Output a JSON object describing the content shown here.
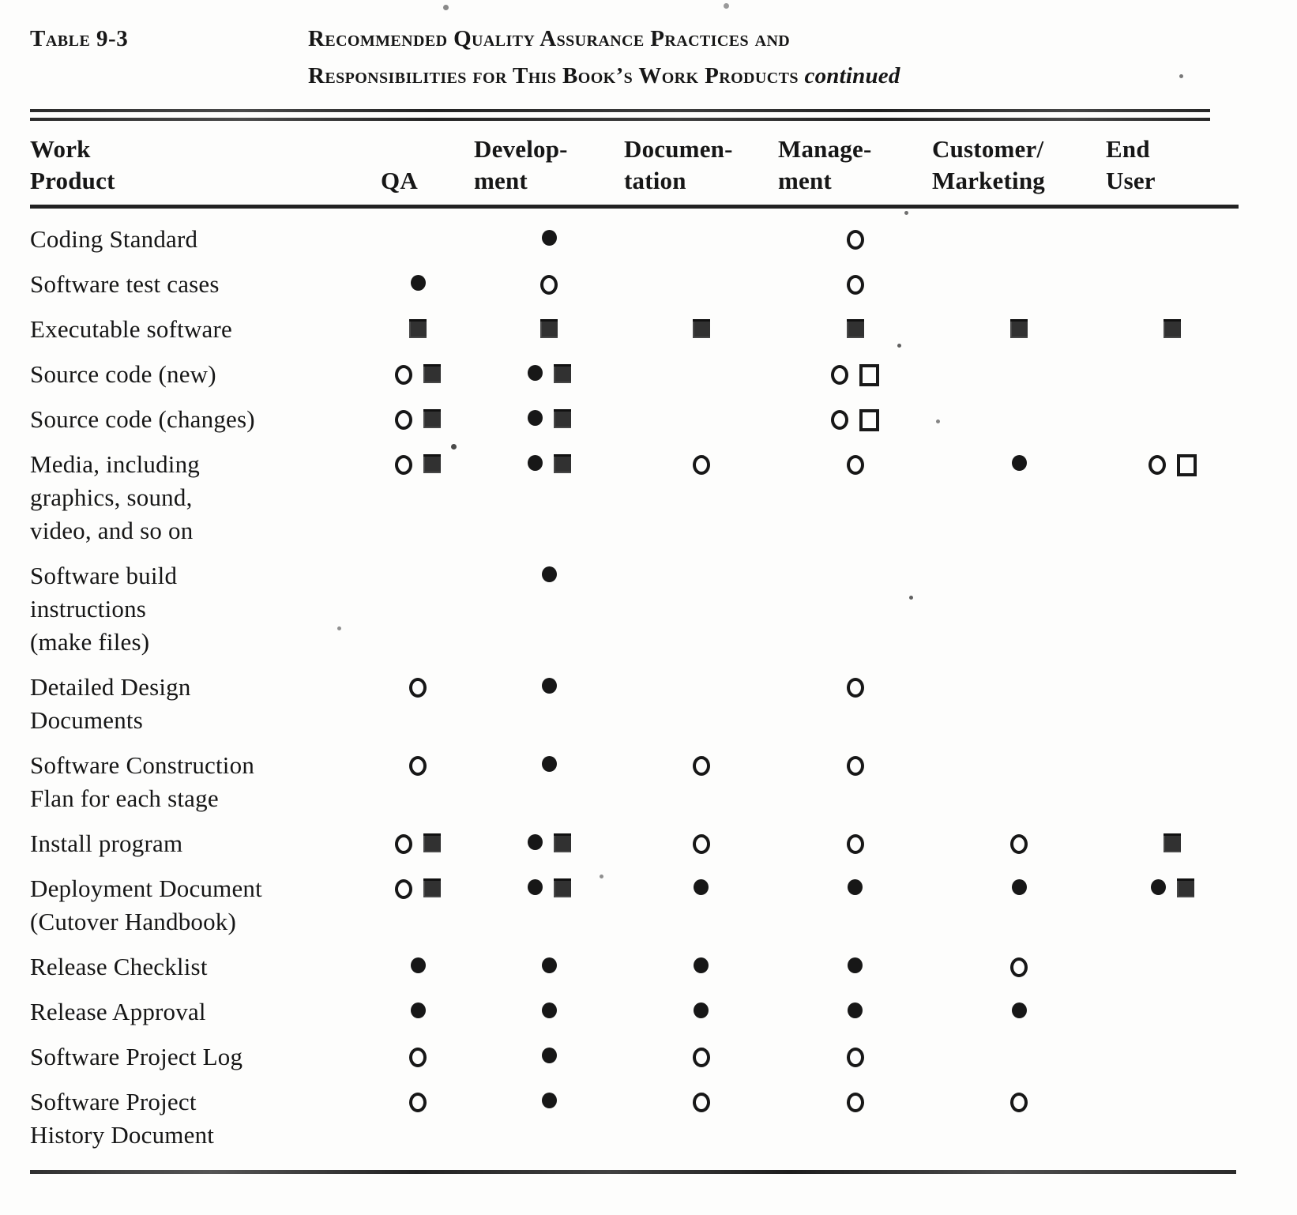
{
  "caption": {
    "label": "Table 9-3",
    "title_line1": "Recommended Quality Assurance Practices and",
    "title_line2": "Responsibilities for This Book’s Work Products",
    "continued": "continued"
  },
  "symbols": {
    "filled-circle": "●",
    "open-circle": "○",
    "filled-square": "■",
    "open-square": "□"
  },
  "columns": [
    {
      "key": "work_product",
      "label": "Work\nProduct"
    },
    {
      "key": "qa",
      "label": "QA"
    },
    {
      "key": "development",
      "label": "Develop-\nment"
    },
    {
      "key": "documentation",
      "label": "Documen-\ntation"
    },
    {
      "key": "management",
      "label": "Manage-\nment"
    },
    {
      "key": "customer_marketing",
      "label": "Customer/\nMarketing"
    },
    {
      "key": "end_user",
      "label": "End\nUser"
    }
  ],
  "rows": [
    {
      "label": "Coding Standard",
      "cells": {
        "qa": [],
        "development": [
          "filled-circle"
        ],
        "documentation": [],
        "management": [
          "open-circle"
        ],
        "customer_marketing": [],
        "end_user": []
      }
    },
    {
      "label": "Software test cases",
      "cells": {
        "qa": [
          "filled-circle"
        ],
        "development": [
          "open-circle"
        ],
        "documentation": [],
        "management": [
          "open-circle"
        ],
        "customer_marketing": [],
        "end_user": []
      }
    },
    {
      "label": "Executable software",
      "cells": {
        "qa": [
          "filled-square"
        ],
        "development": [
          "filled-square"
        ],
        "documentation": [
          "filled-square"
        ],
        "management": [
          "filled-square"
        ],
        "customer_marketing": [
          "filled-square"
        ],
        "end_user": [
          "filled-square"
        ]
      }
    },
    {
      "label": "Source code (new)",
      "cells": {
        "qa": [
          "open-circle",
          "filled-square"
        ],
        "development": [
          "filled-circle",
          "filled-square"
        ],
        "documentation": [],
        "management": [
          "open-circle",
          "open-square"
        ],
        "customer_marketing": [],
        "end_user": []
      }
    },
    {
      "label": "Source code (changes)",
      "cells": {
        "qa": [
          "open-circle",
          "filled-square"
        ],
        "development": [
          "filled-circle",
          "filled-square"
        ],
        "documentation": [],
        "management": [
          "open-circle",
          "open-square"
        ],
        "customer_marketing": [],
        "end_user": []
      }
    },
    {
      "label": "Media, including\ngraphics, sound,\nvideo, and so on",
      "cells": {
        "qa": [
          "open-circle",
          "filled-square"
        ],
        "development": [
          "filled-circle",
          "filled-square"
        ],
        "documentation": [
          "open-circle"
        ],
        "management": [
          "open-circle"
        ],
        "customer_marketing": [
          "filled-circle"
        ],
        "end_user": [
          "open-circle",
          "open-square"
        ]
      }
    },
    {
      "label": "Software build\ninstructions\n(make files)",
      "cells": {
        "qa": [],
        "development": [
          "filled-circle"
        ],
        "documentation": [],
        "management": [],
        "customer_marketing": [],
        "end_user": []
      }
    },
    {
      "label": "Detailed Design\nDocuments",
      "cells": {
        "qa": [
          "open-circle"
        ],
        "development": [
          "filled-circle"
        ],
        "documentation": [],
        "management": [
          "open-circle"
        ],
        "customer_marketing": [],
        "end_user": []
      }
    },
    {
      "label": "Software  Construction\nFlan for each stage",
      "cells": {
        "qa": [
          "open-circle"
        ],
        "development": [
          "filled-circle"
        ],
        "documentation": [
          "open-circle"
        ],
        "management": [
          "open-circle"
        ],
        "customer_marketing": [],
        "end_user": []
      }
    },
    {
      "label": "Install program",
      "cells": {
        "qa": [
          "open-circle",
          "filled-square"
        ],
        "development": [
          "filled-circle",
          "filled-square"
        ],
        "documentation": [
          "open-circle"
        ],
        "management": [
          "open-circle"
        ],
        "customer_marketing": [
          "open-circle"
        ],
        "end_user": [
          "filled-square"
        ]
      }
    },
    {
      "label": "Deployment Document\n(Cutover  Handbook)",
      "cells": {
        "qa": [
          "open-circle",
          "filled-square"
        ],
        "development": [
          "filled-circle",
          "filled-square"
        ],
        "documentation": [
          "filled-circle"
        ],
        "management": [
          "filled-circle"
        ],
        "customer_marketing": [
          "filled-circle"
        ],
        "end_user": [
          "filled-circle",
          "filled-square"
        ]
      }
    },
    {
      "label": "Release Checklist",
      "cells": {
        "qa": [
          "filled-circle"
        ],
        "development": [
          "filled-circle"
        ],
        "documentation": [
          "filled-circle"
        ],
        "management": [
          "filled-circle"
        ],
        "customer_marketing": [
          "open-circle"
        ],
        "end_user": []
      }
    },
    {
      "label": "Release Approval",
      "cells": {
        "qa": [
          "filled-circle"
        ],
        "development": [
          "filled-circle"
        ],
        "documentation": [
          "filled-circle"
        ],
        "management": [
          "filled-circle"
        ],
        "customer_marketing": [
          "filled-circle"
        ],
        "end_user": []
      }
    },
    {
      "label": "Software Project Log",
      "cells": {
        "qa": [
          "open-circle"
        ],
        "development": [
          "filled-circle"
        ],
        "documentation": [
          "open-circle"
        ],
        "management": [
          "open-circle"
        ],
        "customer_marketing": [],
        "end_user": []
      }
    },
    {
      "label": "Software Project\nHistory Document",
      "cells": {
        "qa": [
          "open-circle"
        ],
        "development": [
          "filled-circle"
        ],
        "documentation": [
          "open-circle"
        ],
        "management": [
          "open-circle"
        ],
        "customer_marketing": [
          "open-circle"
        ],
        "end_user": []
      }
    }
  ]
}
